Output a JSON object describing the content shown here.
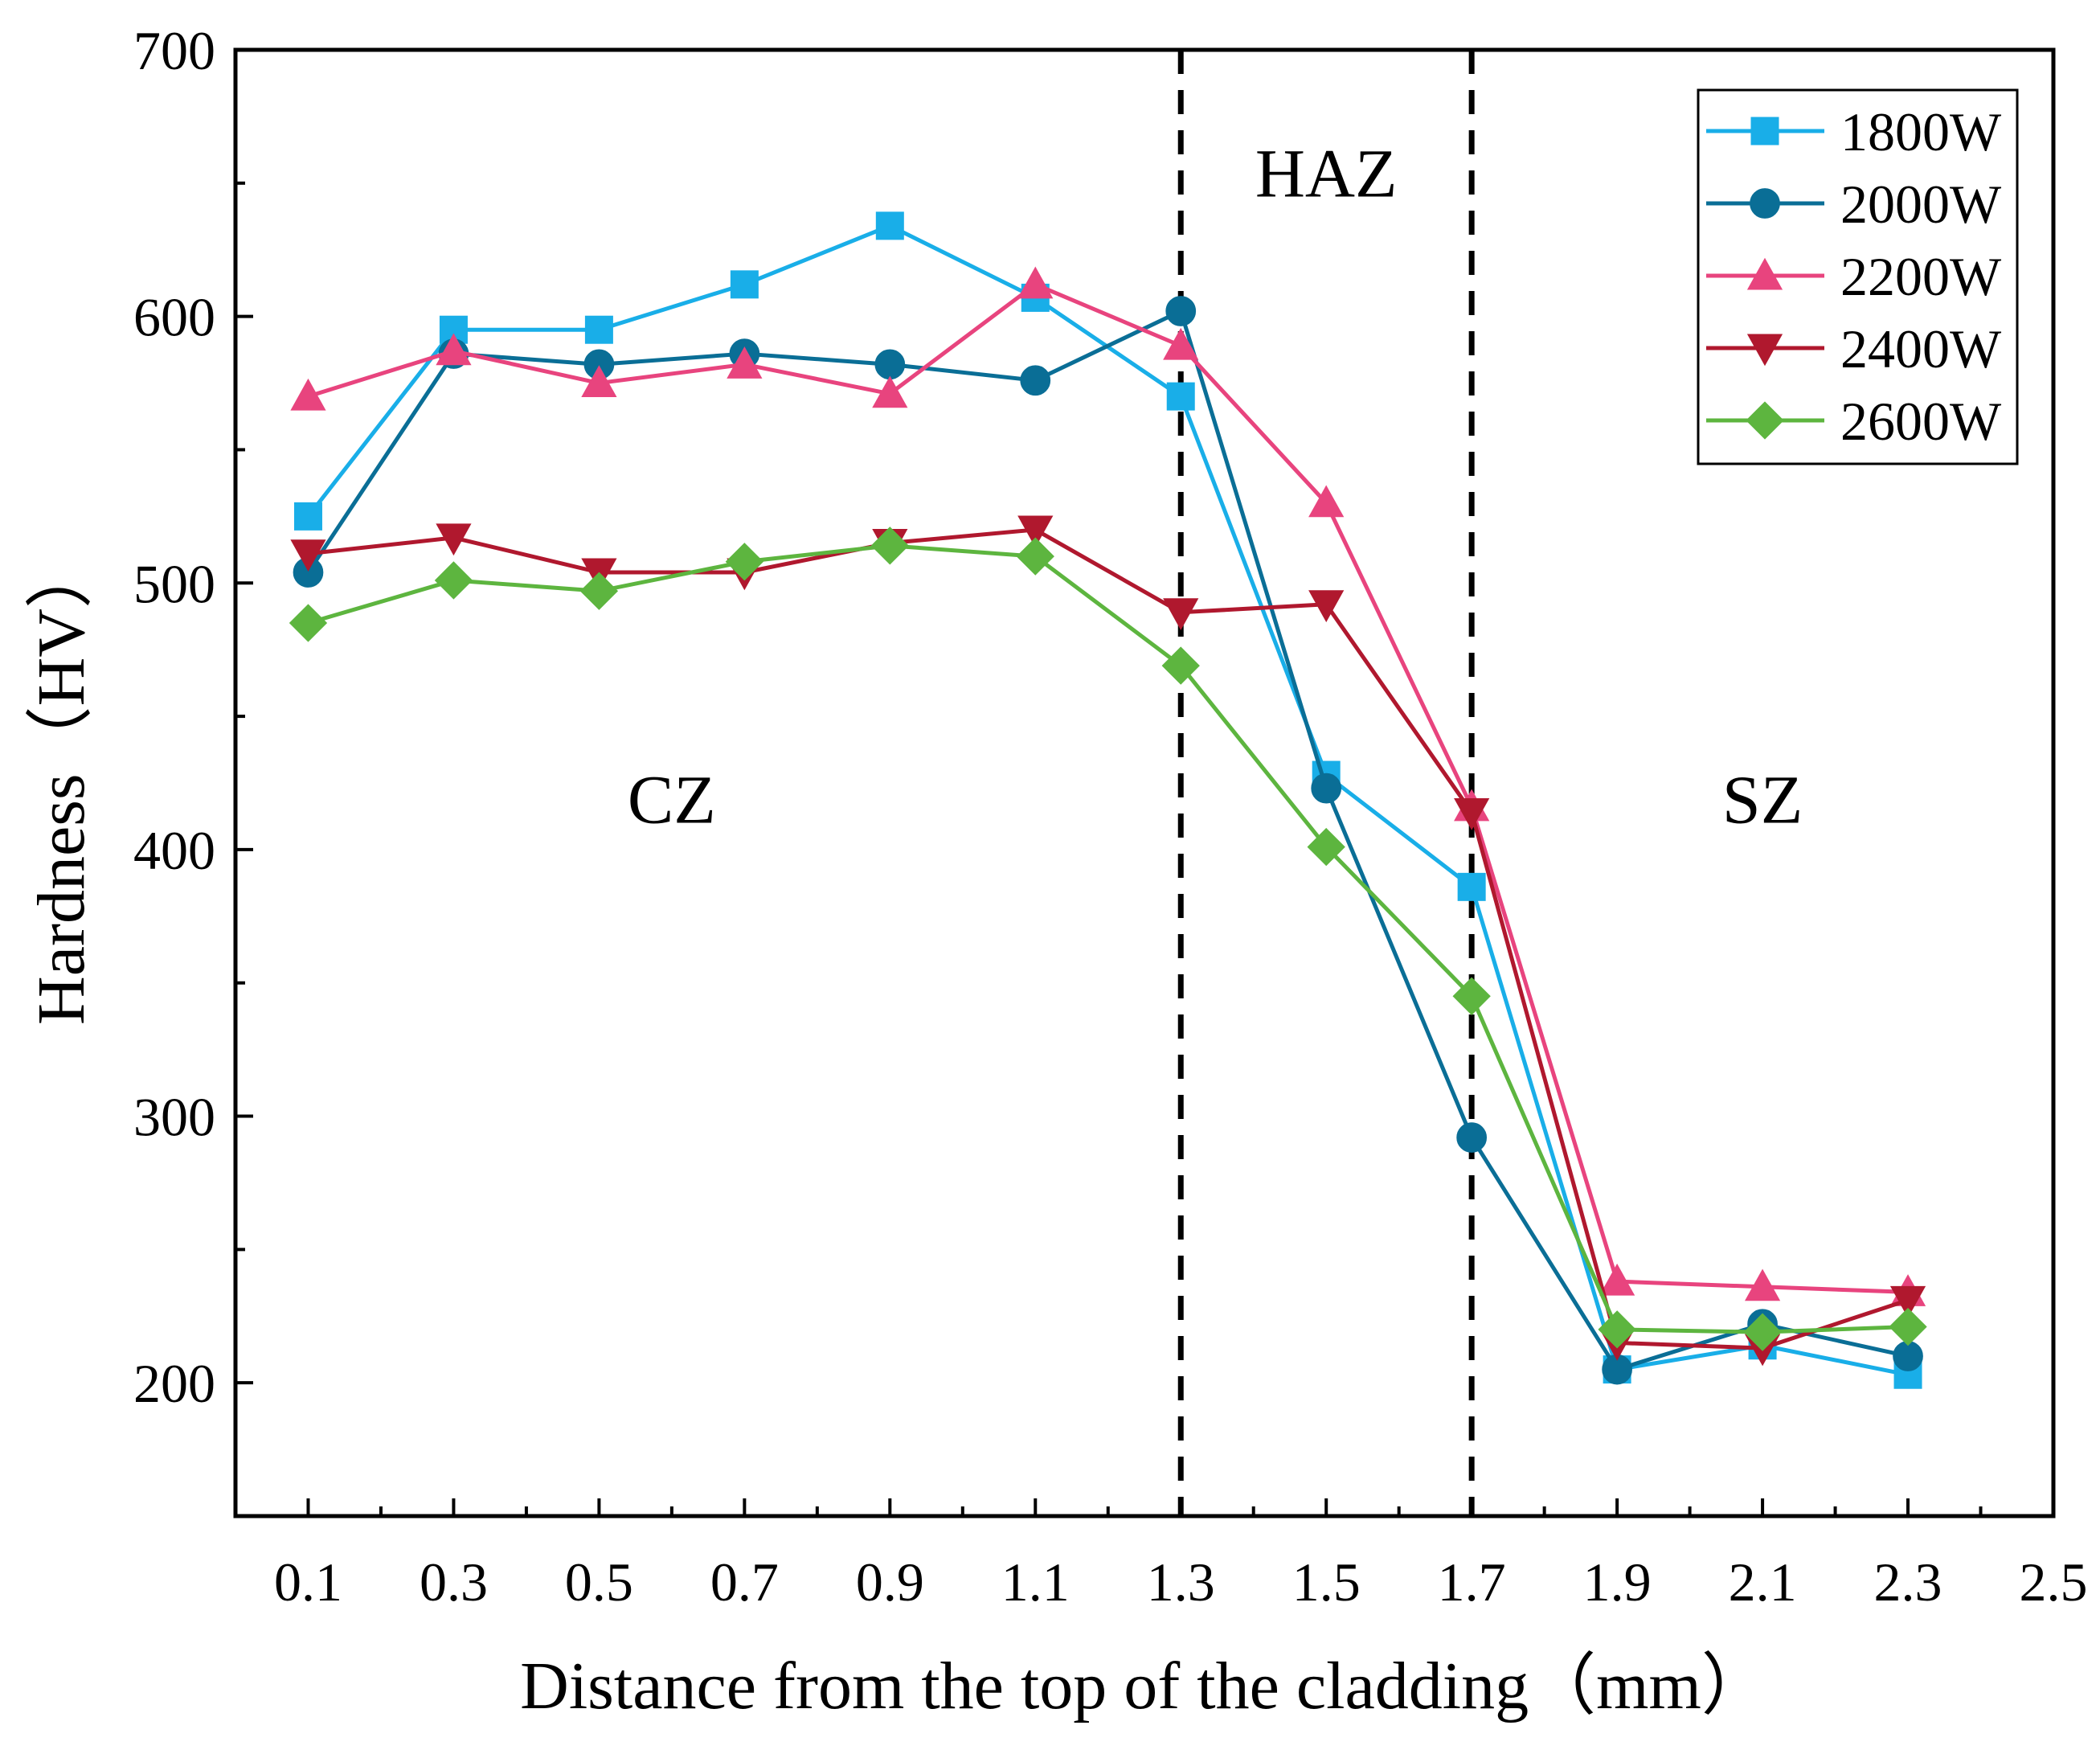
{
  "chart_data": {
    "type": "line",
    "xlabel": "Distance from the top of the cladding（mm）",
    "ylabel": "Hardness（HV）",
    "xlim": [
      0.0,
      2.5
    ],
    "ylim": [
      150,
      700
    ],
    "x_ticks": [
      0.1,
      0.3,
      0.5,
      0.7,
      0.9,
      1.1,
      1.3,
      1.5,
      1.7,
      1.9,
      2.1,
      2.3,
      2.5
    ],
    "x_tick_labels": [
      "0.1",
      "0.3",
      "0.5",
      "0.7",
      "0.9",
      "1.1",
      "1.3",
      "1.5",
      "1.7",
      "1.9",
      "2.1",
      "2.3",
      "2.5"
    ],
    "y_ticks": [
      200,
      300,
      400,
      500,
      600,
      700
    ],
    "y_tick_labels": [
      "200",
      "300",
      "400",
      "500",
      "600",
      "700"
    ],
    "x": [
      0.1,
      0.3,
      0.5,
      0.7,
      0.9,
      1.1,
      1.3,
      1.5,
      1.7,
      1.9,
      2.1,
      2.3
    ],
    "series": [
      {
        "name": "1800W",
        "color": "#19AEE8",
        "marker": "square",
        "values": [
          525,
          595,
          595,
          612,
          634,
          607,
          570,
          428,
          386,
          205,
          214,
          203
        ]
      },
      {
        "name": "2000W",
        "color": "#0A6E96",
        "marker": "circle",
        "values": [
          504,
          586,
          582,
          586,
          582,
          576,
          602,
          423,
          292,
          205,
          222,
          210
        ]
      },
      {
        "name": "2200W",
        "color": "#E8447E",
        "marker": "triangle-up",
        "values": [
          570,
          587,
          575,
          582,
          571,
          612,
          589,
          530,
          416,
          238,
          236,
          234
        ]
      },
      {
        "name": "2400W",
        "color": "#B0182E",
        "marker": "triangle-down",
        "values": [
          511,
          517,
          504,
          504,
          515,
          520,
          489,
          492,
          414,
          215,
          213,
          231
        ]
      },
      {
        "name": "2600W",
        "color": "#5DB53F",
        "marker": "diamond",
        "values": [
          485,
          501,
          497,
          508,
          514,
          510,
          469,
          401,
          345,
          220,
          219,
          221
        ]
      }
    ],
    "vlines": [
      1.3,
      1.7
    ],
    "annotations": [
      {
        "text": "HAZ",
        "x": 1.5,
        "y": 645
      },
      {
        "text": "CZ",
        "x": 0.6,
        "y": 410
      },
      {
        "text": "SZ",
        "x": 2.1,
        "y": 410
      }
    ],
    "legend": {
      "position": "top-right",
      "entries": [
        "1800W",
        "2000W",
        "2200W",
        "2400W",
        "2600W"
      ]
    }
  }
}
